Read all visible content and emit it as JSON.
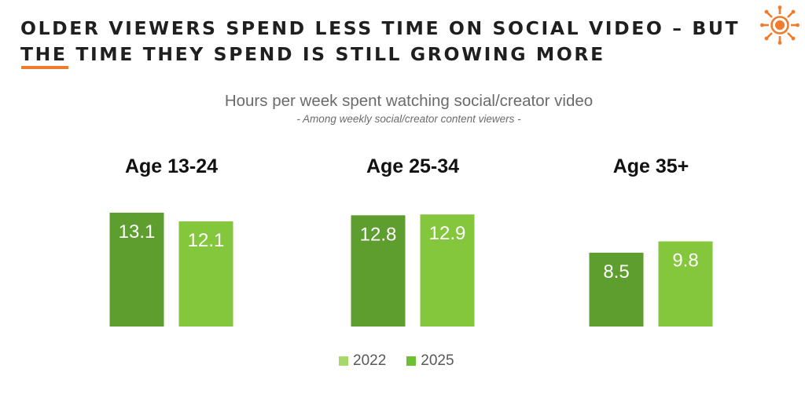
{
  "header": {
    "title": "OLDER VIEWERS SPEND LESS TIME ON SOCIAL VIDEO – BUT THE TIME THEY SPEND IS STILL GROWING MORE",
    "logo_icon": "sun-icon",
    "accent_color": "#f07b2a"
  },
  "chart_data": {
    "type": "bar",
    "title": "Hours per week spent watching social/creator video",
    "subtitle": "- Among weekly social/creator content viewers -",
    "categories": [
      "Age 13-24",
      "Age 25-34",
      "Age 35+"
    ],
    "series": [
      {
        "name": "2022",
        "values": [
          13.1,
          12.8,
          8.5
        ],
        "color": "#5e9e2e"
      },
      {
        "name": "2025",
        "values": [
          12.1,
          12.9,
          9.8
        ],
        "color": "#84c63c"
      }
    ],
    "legend_entries": [
      {
        "name": "2022",
        "color": "#a6d96a"
      },
      {
        "name": "2025",
        "color": "#6dbf33"
      }
    ],
    "ylim": [
      0,
      13.1
    ],
    "grid": false,
    "legend_position": "bottom"
  }
}
